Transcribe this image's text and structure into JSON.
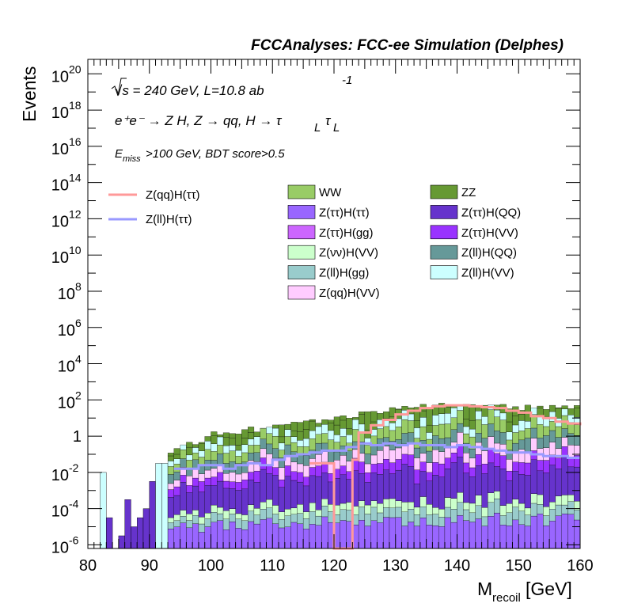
{
  "chart_data": {
    "type": "histogram",
    "title": "FCCAnalyses: FCC-ee Simulation (Delphes)",
    "annotations": {
      "line1": "√s = 240 GeV, L=10.8 ab",
      "line1_sup": "-1",
      "line2_main": "e⁺e⁻ → Z H, Z  → qq, H  → τ",
      "line2_sub": "L",
      "line3_main": "E",
      "line3_sub": "miss",
      "line3_rest": ">100 GeV, BDT score>0.5"
    },
    "xlabel": "M",
    "xlabel_sub": "recoil",
    "xlabel_unit": " [GeV]",
    "ylabel": "Events",
    "xlim": [
      80,
      160
    ],
    "ylim_log10": [
      -6.2,
      20.8
    ],
    "y_scale": "log",
    "x_ticks": [
      "80",
      "90",
      "100",
      "110",
      "120",
      "130",
      "140",
      "150",
      "160"
    ],
    "y_ticks": [
      {
        "v": -6,
        "base": "10",
        "exp": "-6"
      },
      {
        "v": -4,
        "base": "10",
        "exp": "-4"
      },
      {
        "v": -2,
        "base": "10",
        "exp": "-2"
      },
      {
        "v": 0,
        "base": "1",
        "exp": ""
      },
      {
        "v": 2,
        "base": "10",
        "exp": "2"
      },
      {
        "v": 4,
        "base": "10",
        "exp": "4"
      },
      {
        "v": 6,
        "base": "10",
        "exp": "6"
      },
      {
        "v": 8,
        "base": "10",
        "exp": "8"
      },
      {
        "v": 10,
        "base": "10",
        "exp": "10"
      },
      {
        "v": 12,
        "base": "10",
        "exp": "12"
      },
      {
        "v": 14,
        "base": "10",
        "exp": "14"
      },
      {
        "v": 16,
        "base": "10",
        "exp": "16"
      },
      {
        "v": 18,
        "base": "10",
        "exp": "18"
      },
      {
        "v": 20,
        "base": "10",
        "exp": "20"
      }
    ],
    "legend": {
      "lines": [
        {
          "name": "Z(qq)H(ττ)",
          "color": "#ff9999"
        },
        {
          "name": "Z(ll)H(ττ)",
          "color": "#9999ff"
        }
      ],
      "fills": [
        {
          "name": "WW",
          "color": "#99cc66"
        },
        {
          "name": "ZZ",
          "color": "#669933"
        },
        {
          "name": "Z(ττ)H(ττ)",
          "color": "#9966ff"
        },
        {
          "name": "Z(ττ)H(QQ)",
          "color": "#6633cc"
        },
        {
          "name": "Z(ττ)H(gg)",
          "color": "#cc66ff"
        },
        {
          "name": "Z(ττ)H(VV)",
          "color": "#9933ff"
        },
        {
          "name": "Z(νν)H(VV)",
          "color": "#ccffcc"
        },
        {
          "name": "Z(ll)H(QQ)",
          "color": "#669999"
        },
        {
          "name": "Z(ll)H(gg)",
          "color": "#99cccc"
        },
        {
          "name": "Z(ll)H(VV)",
          "color": "#ccffff"
        },
        {
          "name": "Z(qq)H(VV)",
          "color": "#ffccff"
        }
      ]
    },
    "stack_envelope": {
      "x": [
        93,
        95,
        98,
        100,
        105,
        110,
        115,
        120,
        125,
        130,
        135,
        140,
        145,
        150,
        155,
        160
      ],
      "log10_y": [
        -1.0,
        -0.7,
        -0.3,
        0.1,
        0.3,
        0.5,
        0.7,
        0.9,
        1.3,
        1.5,
        1.7,
        1.8,
        1.7,
        1.6,
        1.6,
        1.6
      ]
    },
    "signal_qq_tautau": {
      "x": [
        116,
        118,
        120,
        122,
        123,
        124,
        126,
        128,
        130,
        132,
        134,
        136,
        138,
        140,
        142,
        144,
        146,
        148,
        150,
        152,
        154,
        156,
        158,
        160
      ],
      "log10_y": [
        -1.5,
        -1.5,
        -6.2,
        -6.2,
        -1.3,
        0.2,
        0.6,
        0.9,
        1.2,
        1.4,
        1.55,
        1.65,
        1.7,
        1.7,
        1.65,
        1.6,
        1.55,
        1.4,
        1.3,
        1.1,
        1.0,
        0.8,
        0.7,
        0.6
      ]
    },
    "signal_ll_tautau": {
      "x": [
        94,
        96,
        98,
        100,
        102,
        104,
        106,
        108,
        110,
        112,
        114,
        116,
        118,
        120,
        122,
        124,
        126,
        128,
        130,
        132,
        134,
        136,
        138,
        140,
        142,
        144,
        146,
        148,
        150,
        152,
        154,
        156,
        158,
        160
      ],
      "log10_y": [
        -1.8,
        -1.8,
        -1.6,
        -1.6,
        -1.8,
        -1.6,
        -1.5,
        -1.6,
        -1.3,
        -1.1,
        -1.0,
        -0.9,
        -0.8,
        -0.8,
        -0.6,
        -0.4,
        -0.5,
        -0.4,
        -0.5,
        -0.4,
        -0.5,
        -0.5,
        -0.6,
        -0.5,
        -0.6,
        -0.7,
        -0.8,
        -0.9,
        -0.9,
        -1.0,
        -1.1,
        -1.1,
        -1.2,
        -1.2
      ]
    }
  }
}
